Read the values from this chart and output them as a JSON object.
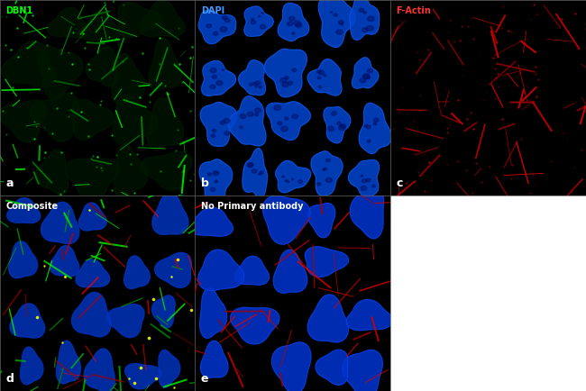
{
  "panels": [
    {
      "id": "a",
      "label": "DBN1",
      "label_color": "#00ff00",
      "letter": "a",
      "type": "green"
    },
    {
      "id": "b",
      "label": "DAPI",
      "label_color": "#4499ff",
      "letter": "b",
      "type": "blue"
    },
    {
      "id": "c",
      "label": "F-Actin",
      "label_color": "#ff3333",
      "letter": "c",
      "type": "red"
    },
    {
      "id": "d",
      "label": "Composite",
      "label_color": "#ffffff",
      "letter": "d",
      "type": "composite"
    },
    {
      "id": "e",
      "label": "No Primary antibody",
      "label_color": "#ffffff",
      "letter": "e",
      "type": "noprimary"
    }
  ],
  "figure_bg": "#ffffff",
  "positions": {
    "a": [
      0.0,
      0.5,
      0.333,
      0.5
    ],
    "b": [
      0.333,
      0.5,
      0.333,
      0.5
    ],
    "c": [
      0.666,
      0.5,
      0.334,
      0.5
    ],
    "d": [
      0.0,
      0.0,
      0.333,
      0.5
    ],
    "e": [
      0.333,
      0.0,
      0.333,
      0.5
    ]
  }
}
